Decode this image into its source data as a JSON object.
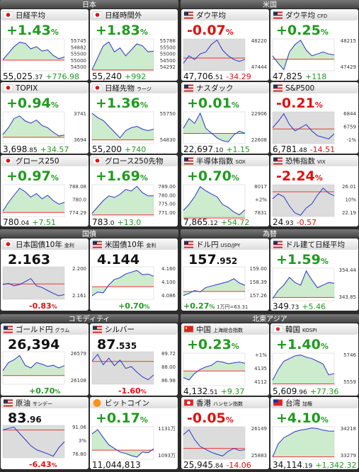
{
  "panels": [
    {
      "title": "日本",
      "tiles": [
        {
          "kind": "index",
          "flag": "jp",
          "trend": "up",
          "name": "日経平均",
          "pct": "+1.43",
          "pct_unit": "%",
          "price_int": "55,025",
          "price_frac": ".37",
          "change": "+776.98",
          "axis_labels": [
            "55745",
            "54882",
            "55500",
            "55000",
            "54500"
          ],
          "ylim": [
            54400,
            55850
          ],
          "base": 54882,
          "spark": [
            54900,
            55200,
            55500,
            55700,
            55650,
            55400,
            55500,
            55300,
            55350,
            55100,
            54950,
            55025
          ]
        },
        {
          "kind": "index",
          "flag": "jp",
          "trend": "up",
          "name": "日経時間外",
          "pct": "+1.83",
          "pct_unit": "%",
          "price_int": "55,240",
          "change": "+992",
          "axis_labels": [
            "55788",
            "55500",
            "55000",
            "54500",
            "54292"
          ],
          "ylim": [
            54250,
            55850
          ],
          "base": 54292,
          "spark": [
            54300,
            54900,
            55500,
            55700,
            55200,
            55400,
            55000,
            55300,
            55600,
            55500,
            55200,
            55240
          ]
        },
        {
          "kind": "index",
          "flag": "jp",
          "trend": "up",
          "name": "TOPIX",
          "pct": "+0.94",
          "pct_unit": "%",
          "price_int": "3,698",
          "price_frac": ".85",
          "change": "+34.57",
          "axis_labels": [
            "3741",
            "3694"
          ],
          "ylim": [
            3680,
            3750
          ],
          "base": 3694,
          "spark": [
            3700,
            3715,
            3735,
            3741,
            3730,
            3725,
            3732,
            3720,
            3715,
            3705,
            3697,
            3699
          ]
        },
        {
          "kind": "index",
          "flag": "jp",
          "trend": "up",
          "name": "日経先物",
          "sub": "ラージ",
          "pct": "+1.36",
          "pct_unit": "%",
          "price_int": "55,200",
          "change": "+740",
          "axis_labels": [
            "55750",
            "54830"
          ],
          "ylim": [
            54700,
            55800
          ],
          "base": 54830,
          "spark": [
            55750,
            55600,
            55500,
            55300,
            55100,
            54900,
            55150,
            55250,
            55300,
            55200,
            55150,
            55200
          ]
        },
        {
          "kind": "index",
          "flag": "jp",
          "trend": "up",
          "name": "グロース250",
          "pct": "+0.97",
          "pct_unit": "%",
          "price_int": "780",
          "price_frac": ".04",
          "change": "+7.51",
          "axis_labels": [
            "788.08",
            "780.0",
            "774.29"
          ],
          "ylim": [
            772,
            790
          ],
          "base": 774.29,
          "spark": [
            775,
            780,
            784,
            788,
            786,
            783,
            785,
            782,
            784,
            781,
            779,
            780
          ]
        },
        {
          "kind": "index",
          "flag": "jp",
          "trend": "up",
          "name": "グロース250先物",
          "pct": "+1.69",
          "pct_unit": "%",
          "price_int": "783",
          "price_frac": ".0",
          "change": "+13.0",
          "axis_labels": [
            "789.00",
            "780.00",
            "775.00",
            "771.00"
          ],
          "ylim": [
            770,
            790
          ],
          "base": 771,
          "spark": [
            772,
            776,
            780,
            783,
            782,
            784,
            787,
            786,
            789,
            785,
            783,
            783
          ]
        }
      ]
    },
    {
      "title": "米国",
      "tiles": [
        {
          "kind": "index",
          "flag": "us",
          "trend": "down",
          "name": "ダウ平均",
          "pct": "-0.07",
          "pct_unit": "%",
          "price_int": "47,706",
          "price_frac": ".51",
          "change": "-34.29",
          "axis_labels": [
            "48220",
            "47444"
          ],
          "ylim": [
            47400,
            48250
          ],
          "base": 47741,
          "spark": [
            47600,
            47800,
            47700,
            47850,
            47900,
            48100,
            48220,
            47950,
            47800,
            47700,
            47650,
            47706
          ]
        },
        {
          "kind": "index",
          "flag": "us",
          "trend": "up",
          "name": "ダウ平均",
          "sub": "CFD",
          "pct": "+0.25",
          "pct_unit": "%",
          "price_int": "47,825",
          "change": "+118",
          "axis_labels": [
            "48215",
            "47429"
          ],
          "ylim": [
            47400,
            48250
          ],
          "base": 47707,
          "spark": [
            47800,
            47600,
            47429,
            47900,
            48100,
            48215,
            47950,
            47800,
            47850,
            47900,
            47850,
            47825
          ]
        },
        {
          "kind": "index",
          "flag": "us",
          "trend": "up",
          "name": "ナスダック",
          "pct": "+0.01",
          "pct_unit": "%",
          "price_int": "22,697",
          "price_frac": ".10",
          "change": "+1.15",
          "axis_labels": [
            "22906",
            "22608"
          ],
          "ylim": [
            22590,
            22920
          ],
          "base": 22696,
          "spark": [
            22750,
            22850,
            22800,
            22906,
            22750,
            22700,
            22650,
            22620,
            22608,
            22680,
            22720,
            22697
          ]
        },
        {
          "kind": "index",
          "flag": "us",
          "trend": "down",
          "name": "S&P500",
          "pct": "-0.21",
          "pct_unit": "%",
          "price_int": "6,781",
          "price_frac": ".48",
          "change": "-14.51",
          "axis_labels": [
            "6844",
            "6759",
            "-1%"
          ],
          "ylim": [
            6750,
            6850
          ],
          "base": 6796,
          "spark": [
            6800,
            6820,
            6844,
            6810,
            6790,
            6800,
            6810,
            6790,
            6775,
            6770,
            6765,
            6781
          ]
        },
        {
          "kind": "index",
          "flag": "us",
          "trend": "up",
          "name": "半導体指数",
          "sub": "SOX",
          "pct": "+0.70",
          "pct_unit": "%",
          "price_int": "7,865",
          "price_frac": ".12",
          "change": "+54.72",
          "axis_labels": [
            "8017",
            "+2%",
            "7831"
          ],
          "ylim": [
            7820,
            8030
          ],
          "base": 7810,
          "spark": [
            7860,
            7900,
            7950,
            8017,
            7990,
            7970,
            7950,
            7900,
            7880,
            7850,
            7831,
            7865
          ]
        },
        {
          "kind": "index",
          "flag": "us",
          "trend": "down",
          "name": "恐怖指数",
          "sub": "VIX",
          "pct": "-2.24",
          "pct_unit": "%",
          "price_int": "24",
          "price_frac": ".93",
          "change": "-0.57",
          "axis_labels": [
            "26.01",
            "10%",
            "22.19"
          ],
          "ylim": [
            22,
            26.5
          ],
          "base": 25.5,
          "spark": [
            24.5,
            25.2,
            24.8,
            23.5,
            22.5,
            22.19,
            23.2,
            23.8,
            25,
            26.01,
            25.3,
            24.93
          ]
        }
      ]
    },
    {
      "title": "国債",
      "tiles": [
        {
          "kind": "rate",
          "flag": "jp",
          "trend": "down",
          "name": "日本国債10年",
          "sub": "金利",
          "price_int": "2.163",
          "pct": "-0.83",
          "pct_unit": "%",
          "axis_labels": [
            "2.200",
            "2.161"
          ],
          "ylim": [
            2.155,
            2.21
          ],
          "base": 2.181,
          "spark": [
            2.18,
            2.182,
            2.178,
            2.18,
            2.185,
            2.19,
            2.178,
            2.175,
            2.17,
            2.165,
            2.161,
            2.163
          ]
        },
        {
          "kind": "rate",
          "flag": "us",
          "trend": "up",
          "name": "米国債10年",
          "sub": "金利",
          "price_int": "4.144",
          "pct": "+0.70",
          "pct_unit": "%",
          "axis_labels": [
            "4.160",
            "4.100",
            "4.086"
          ],
          "ylim": [
            4.08,
            4.17
          ],
          "base": 4.115,
          "spark": [
            4.09,
            4.1,
            4.098,
            4.12,
            4.135,
            4.14,
            4.15,
            4.155,
            4.16,
            4.148,
            4.15,
            4.144
          ]
        }
      ]
    },
    {
      "title": "為替",
      "tiles": [
        {
          "kind": "rate",
          "flag": "us",
          "trend": "up",
          "name": "ドル円",
          "sub": "USD/JPY",
          "price_int": "157",
          "price_frac": ".952",
          "pct": "+0.27",
          "pct_unit": "%",
          "note": "1万円=63.31",
          "axis_labels": [
            "159.00",
            "158.39",
            "157.26"
          ],
          "ylim": [
            157,
            159.2
          ],
          "base": 157.53,
          "spark": [
            157.26,
            157.4,
            157.6,
            157.5,
            157.8,
            157.9,
            158,
            158.1,
            158.2,
            158.39,
            158.1,
            157.95
          ]
        },
        {
          "kind": "index",
          "flag": "us",
          "trend": "up",
          "name": "ドル建て日経平均",
          "pct": "+1.59",
          "pct_unit": "%",
          "price_int": "349",
          "price_frac": ".73",
          "change": "+5.46",
          "axis_labels": [
            "354.44",
            "343.85"
          ],
          "ylim": [
            343,
            355.5
          ],
          "base": 344.27,
          "spark": [
            343.85,
            347,
            349,
            352,
            350,
            349,
            354.44,
            351,
            348,
            349,
            350,
            349.73
          ]
        }
      ]
    },
    {
      "title": "コモディティ",
      "tiles": [
        {
          "kind": "rate",
          "flag": "us",
          "trend": "up",
          "name": "ゴールド円",
          "sub": "グラム",
          "price_int": "26,394",
          "pct": "+0.70",
          "pct_unit": "%",
          "axis_labels": [
            "26579",
            "26108"
          ],
          "ylim": [
            26050,
            26650
          ],
          "base": 26210,
          "spark": [
            26300,
            26450,
            26500,
            26579,
            26400,
            26350,
            26450,
            26420,
            26380,
            26400,
            26350,
            26394
          ]
        },
        {
          "kind": "rate",
          "flag": "us",
          "trend": "down",
          "name": "シルバー",
          "price_int": "87",
          "price_frac": ".535",
          "pct": "-1.60",
          "pct_unit": "%",
          "axis_labels": [
            "89.72",
            "88.00",
            "86.98"
          ],
          "ylim": [
            86.5,
            90
          ],
          "base": 88.95,
          "spark": [
            89,
            89.72,
            88.6,
            89.3,
            88.5,
            89.1,
            88.2,
            88.4,
            87.8,
            87.3,
            86.98,
            87.5
          ]
        },
        {
          "kind": "rate",
          "flag": "us",
          "trend": "down",
          "name": "原油",
          "sub": "サンデー",
          "price_int": "83",
          "price_frac": ".96",
          "pct": "-6.43",
          "pct_unit": "%",
          "axis_labels": [
            "91.06",
            "3%",
            "76.80"
          ],
          "ylim": [
            76,
            92
          ],
          "base": 89.7,
          "spark": [
            89.7,
            90.5,
            91.06,
            88,
            85,
            82,
            80,
            79,
            78,
            76.8,
            81,
            83.96
          ]
        },
        {
          "kind": "index",
          "flag": "btc",
          "trend": "up",
          "name": "ビットコイン",
          "pct": "+0.17",
          "pct_unit": "%",
          "price_int": "11,044,813",
          "axis_labels": [
            "1131万",
            "1093万"
          ],
          "ylim": [
            10900000,
            11350000
          ],
          "base": 11026000,
          "spark": [
            11250000,
            11310000,
            11200000,
            11100000,
            11050000,
            11000000,
            10980000,
            10950000,
            10930000,
            11000000,
            10990000,
            11044813
          ]
        }
      ]
    },
    {
      "title": "北東アジア",
      "tiles": [
        {
          "kind": "index",
          "flag": "cn",
          "trend": "up",
          "name": "中国",
          "sub": "上海総合指数",
          "pct": "+0.23",
          "pct_unit": "%",
          "price_int": "4,132",
          "price_frac": ".51",
          "change": "+9.37",
          "axis_labels": [
            "+1%",
            "4135",
            "4112"
          ],
          "ylim": [
            4105,
            4145
          ],
          "base": 4123,
          "spark": [
            4115,
            4112,
            4120,
            4125,
            4128,
            4130,
            4135,
            4134,
            4132,
            4133,
            4134,
            4132.5
          ]
        },
        {
          "kind": "index",
          "flag": "kr",
          "trend": "up",
          "name": "韓国",
          "sub": "KOSPI",
          "pct": "+1.40",
          "pct_unit": "%",
          "price_int": "5,609",
          "price_frac": ".96",
          "change": "+77.36",
          "axis_labels": [
            "5746",
            "5559"
          ],
          "ylim": [
            5520,
            5760
          ],
          "base": 5533,
          "spark": [
            5560,
            5640,
            5700,
            5720,
            5740,
            5746,
            5730,
            5720,
            5700,
            5680,
            5600,
            5610
          ]
        },
        {
          "kind": "index",
          "flag": "hk",
          "trend": "down",
          "name": "香港",
          "sub": "ハンセン指数",
          "pct": "-0.05",
          "pct_unit": "%",
          "price_int": "25,945",
          "price_frac": ".84",
          "change": "-14.06",
          "axis_labels": [
            "26149",
            "25883"
          ],
          "ylim": [
            25850,
            26180
          ],
          "base": 25960,
          "spark": [
            26100,
            26149,
            26050,
            25980,
            25950,
            25920,
            25900,
            25883,
            25930,
            25960,
            25940,
            25946
          ]
        },
        {
          "kind": "index",
          "flag": "tw",
          "trend": "up",
          "name": "台湾",
          "sub": "加権",
          "pct": "+4.10",
          "pct_unit": "%",
          "price_int": "34,114",
          "price_frac": ".19",
          "change": "+1,342.32",
          "axis_labels": [
            "34218",
            "33279"
          ],
          "ylim": [
            33200,
            34260
          ],
          "base": 33279,
          "spark": [
            33279,
            33700,
            33900,
            34000,
            34100,
            34150,
            34180,
            34218,
            34200,
            34150,
            34120,
            34114
          ]
        }
      ]
    }
  ]
}
